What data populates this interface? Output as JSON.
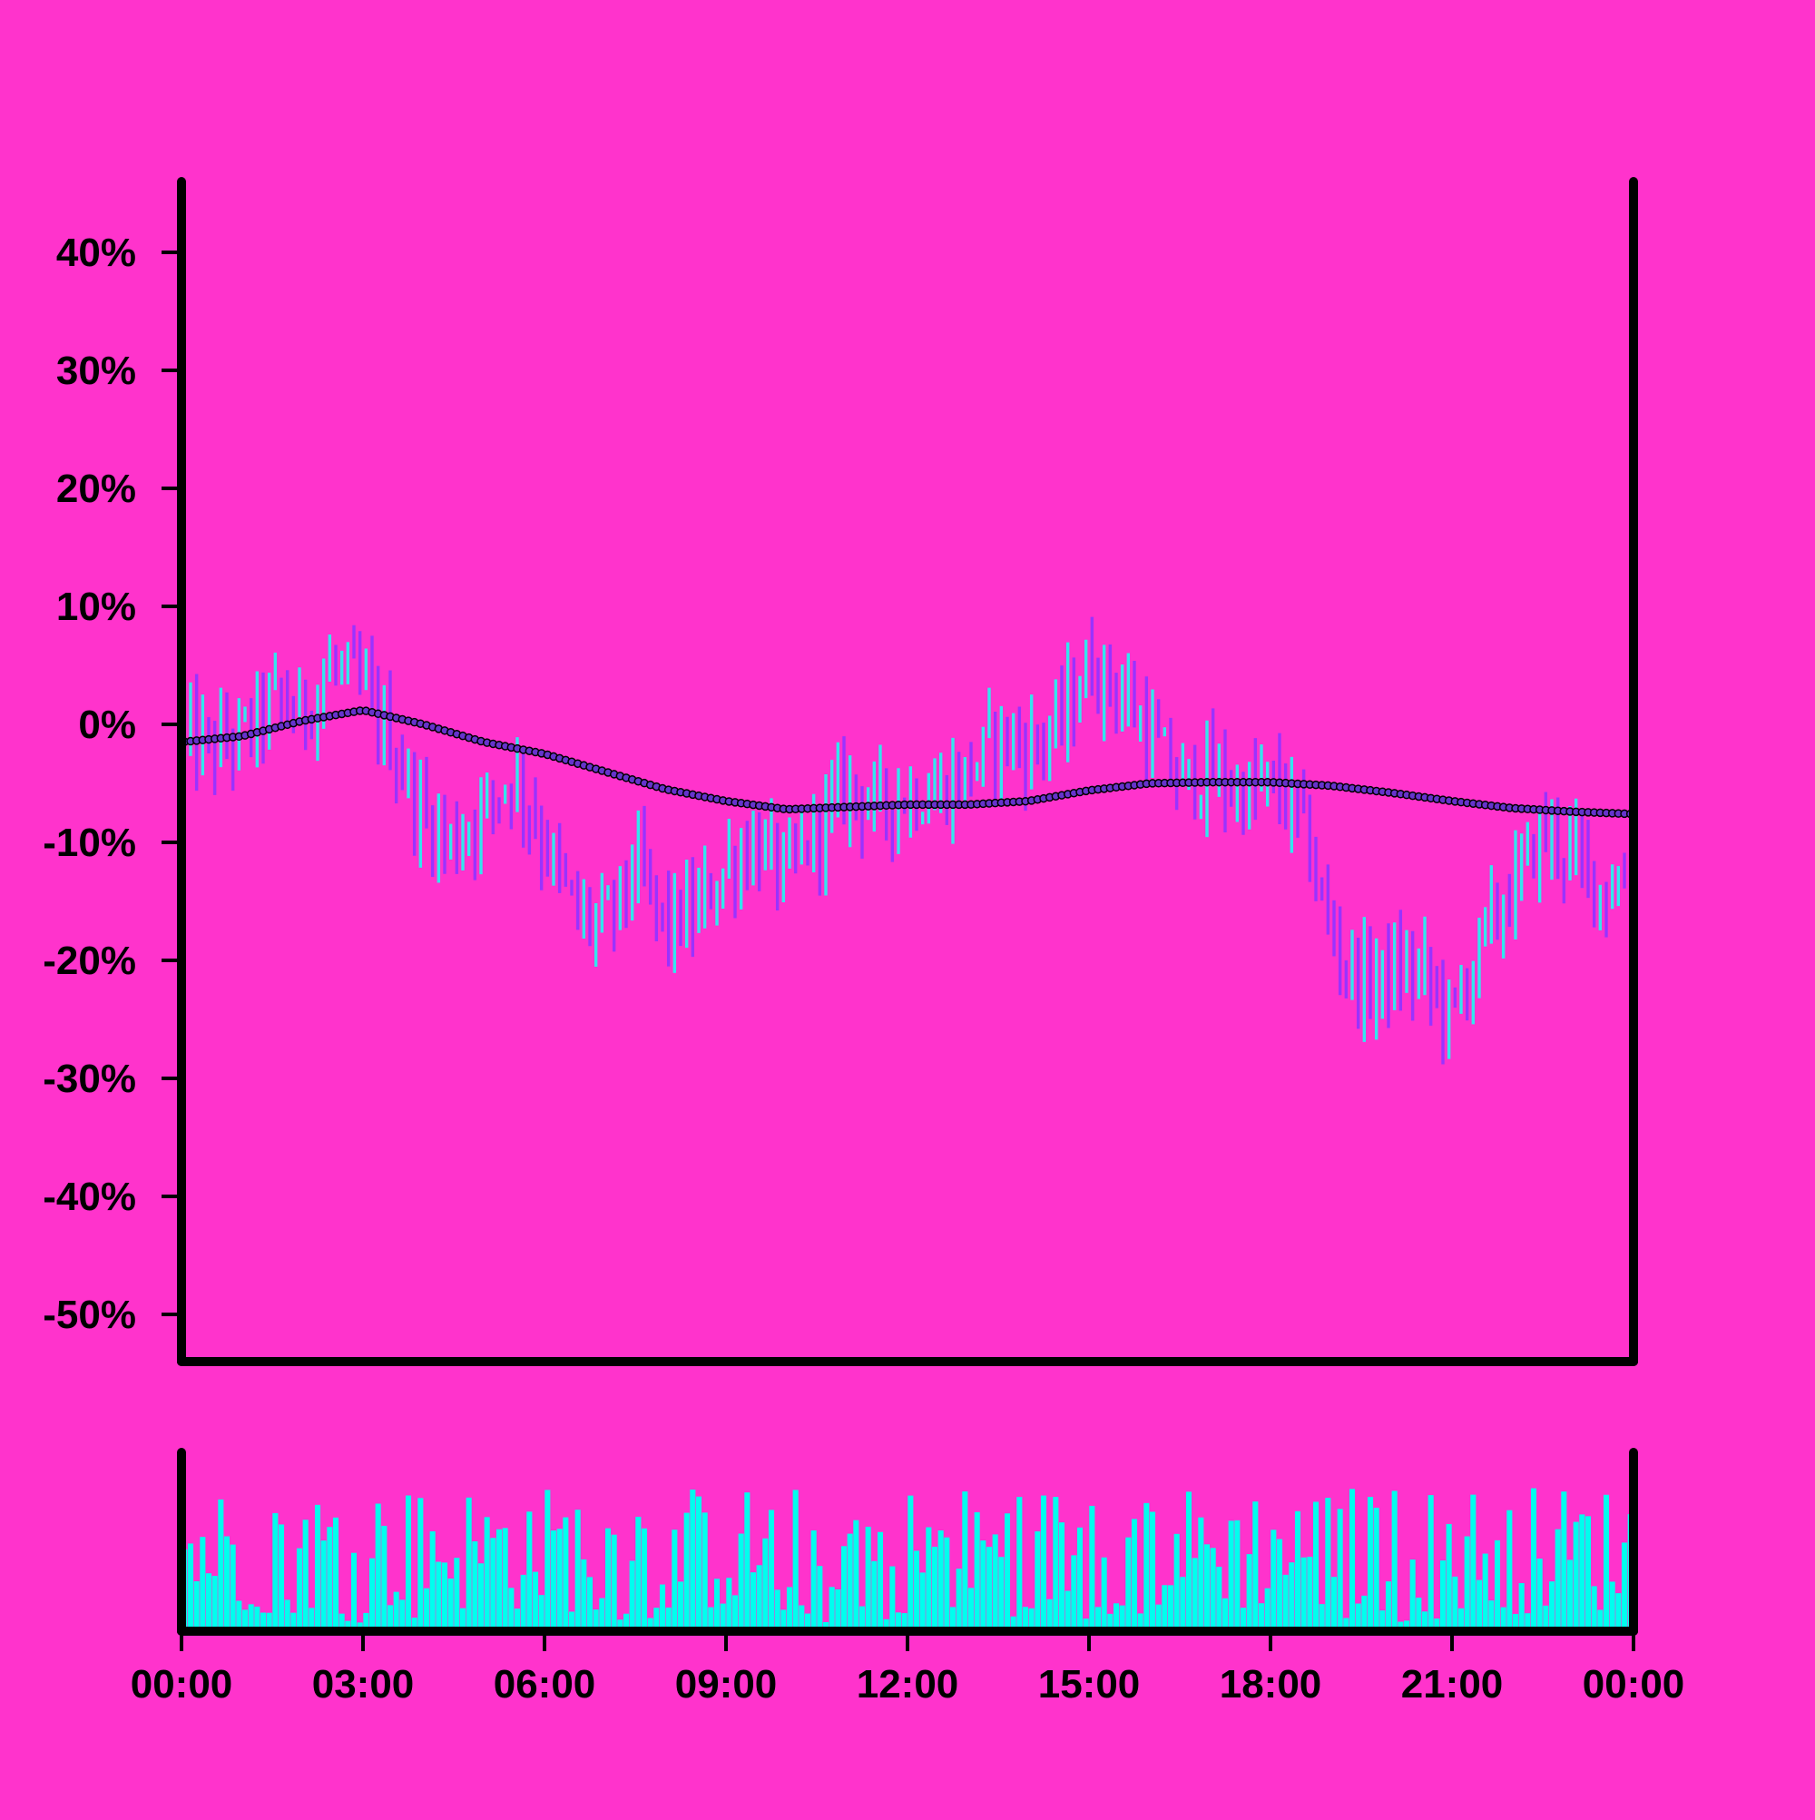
{
  "chart_data": {
    "type": "ohlc",
    "title": "",
    "xlabel": "",
    "ylabel": "",
    "y_tick_labels": [
      "40%",
      "30%",
      "20%",
      "10%",
      "0%",
      "-10%",
      "-20%",
      "-30%",
      "-40%",
      "-50%"
    ],
    "y_tick_values": [
      40,
      30,
      20,
      10,
      0,
      -10,
      -20,
      -30,
      -40,
      -50
    ],
    "ylim": [
      -54,
      46
    ],
    "x_tick_labels": [
      "00:00",
      "03:00",
      "06:00",
      "09:00",
      "12:00",
      "15:00",
      "18:00",
      "21:00",
      "00:00"
    ],
    "x_tick_hours": [
      0,
      3,
      6,
      9,
      12,
      15,
      18,
      21,
      24
    ],
    "xlim_hours": [
      0,
      24
    ],
    "grid": false,
    "legend": "none",
    "colors": {
      "background": "#ff33cc",
      "up_bar": "#33e6ee",
      "down_bar": "#9933ff",
      "moving_average_marker": "#6633cc",
      "volume_bar": "#00ffee",
      "axis": "#000000"
    },
    "price_series": {
      "interval_minutes": 6,
      "count": 240,
      "close_keypoints_hours": [
        0,
        0.5,
        1,
        1.5,
        2,
        2.5,
        3,
        3.5,
        4,
        4.5,
        5,
        5.5,
        6,
        6.5,
        7,
        7.5,
        8,
        8.5,
        9,
        9.5,
        10,
        10.5,
        11,
        11.5,
        12,
        12.5,
        13,
        13.5,
        14,
        14.5,
        15,
        15.5,
        16,
        16.5,
        17,
        17.5,
        18,
        18.5,
        19,
        19.5,
        20,
        20.5,
        21,
        21.5,
        22,
        22.5,
        23,
        23.5,
        24
      ],
      "close_keypoints_pct": [
        -1,
        -2,
        -1,
        2,
        1,
        5,
        3,
        -2,
        -8,
        -10,
        -7,
        -4,
        -10,
        -16,
        -17,
        -12,
        -17,
        -16,
        -12,
        -10,
        -13,
        -9,
        -5,
        -7,
        -6,
        -6,
        -4,
        -1,
        -2,
        0,
        5,
        3,
        -1,
        -5,
        -4,
        -6,
        -5,
        -8,
        -18,
        -22,
        -21,
        -21,
        -25,
        -18,
        -14,
        -9,
        -11,
        -14,
        -13
      ],
      "bar_range_pct": 3.5,
      "moving_average": {
        "window_bars": 120,
        "keypoints_hours": [
          0,
          1,
          2,
          3,
          4,
          5,
          6,
          7,
          8,
          9,
          10,
          11,
          12,
          13,
          14,
          15,
          16,
          17,
          18,
          19,
          20,
          21,
          22,
          23,
          24
        ],
        "keypoints_pct": [
          -1.5,
          -1,
          0.3,
          1.2,
          0,
          -1.5,
          -2.5,
          -4,
          -5.5,
          -6.5,
          -7.2,
          -7,
          -6.8,
          -6.8,
          -6.5,
          -5.6,
          -5,
          -4.9,
          -4.9,
          -5.2,
          -5.8,
          -6.5,
          -7.1,
          -7.4,
          -7.6
        ]
      }
    },
    "volume_series": {
      "interval_minutes": 6,
      "count": 240,
      "relative_range": [
        0.1,
        1.0
      ]
    }
  }
}
